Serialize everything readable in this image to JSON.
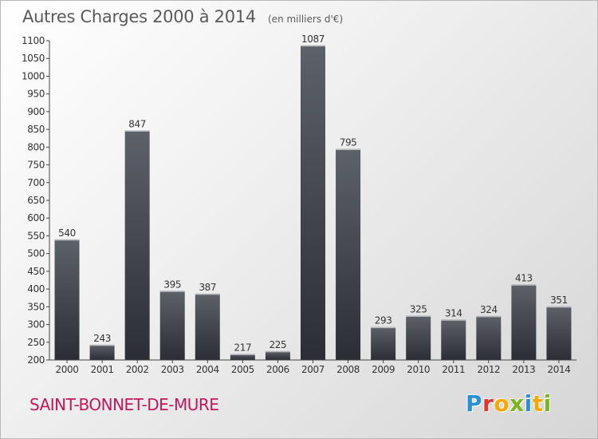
{
  "header": {
    "title": "Autres Charges 2000 à 2014",
    "unit": "(en milliers d'€)"
  },
  "footer": {
    "city": "SAINT-BONNET-DE-MURE",
    "logo_text": "Proxiti"
  },
  "colors": {
    "bar_top": "#5d6168",
    "bar_bottom": "#2b2e34",
    "city": "#c0185b",
    "logo_letters": [
      "#2a8fd3",
      "#e5322d",
      "#f5a800",
      "#7ab51d",
      "#2a8fd3",
      "#f5a800",
      "#7ab51d"
    ]
  },
  "chart_data": {
    "type": "bar",
    "title": "Autres Charges 2000 à 2014",
    "subtitle": "(en milliers d'€)",
    "categories": [
      "2000",
      "2001",
      "2002",
      "2003",
      "2004",
      "2005",
      "2006",
      "2007",
      "2008",
      "2009",
      "2010",
      "2011",
      "2012",
      "2013",
      "2014"
    ],
    "values": [
      540,
      243,
      847,
      395,
      387,
      217,
      225,
      1087,
      795,
      293,
      325,
      314,
      324,
      413,
      351
    ],
    "ylim": [
      200,
      1100
    ],
    "yticks": [
      200,
      250,
      300,
      350,
      400,
      450,
      500,
      550,
      600,
      650,
      700,
      750,
      800,
      850,
      900,
      950,
      1000,
      1050,
      1100
    ],
    "xlabel": "",
    "ylabel": "",
    "grid": false,
    "legend": "none"
  }
}
